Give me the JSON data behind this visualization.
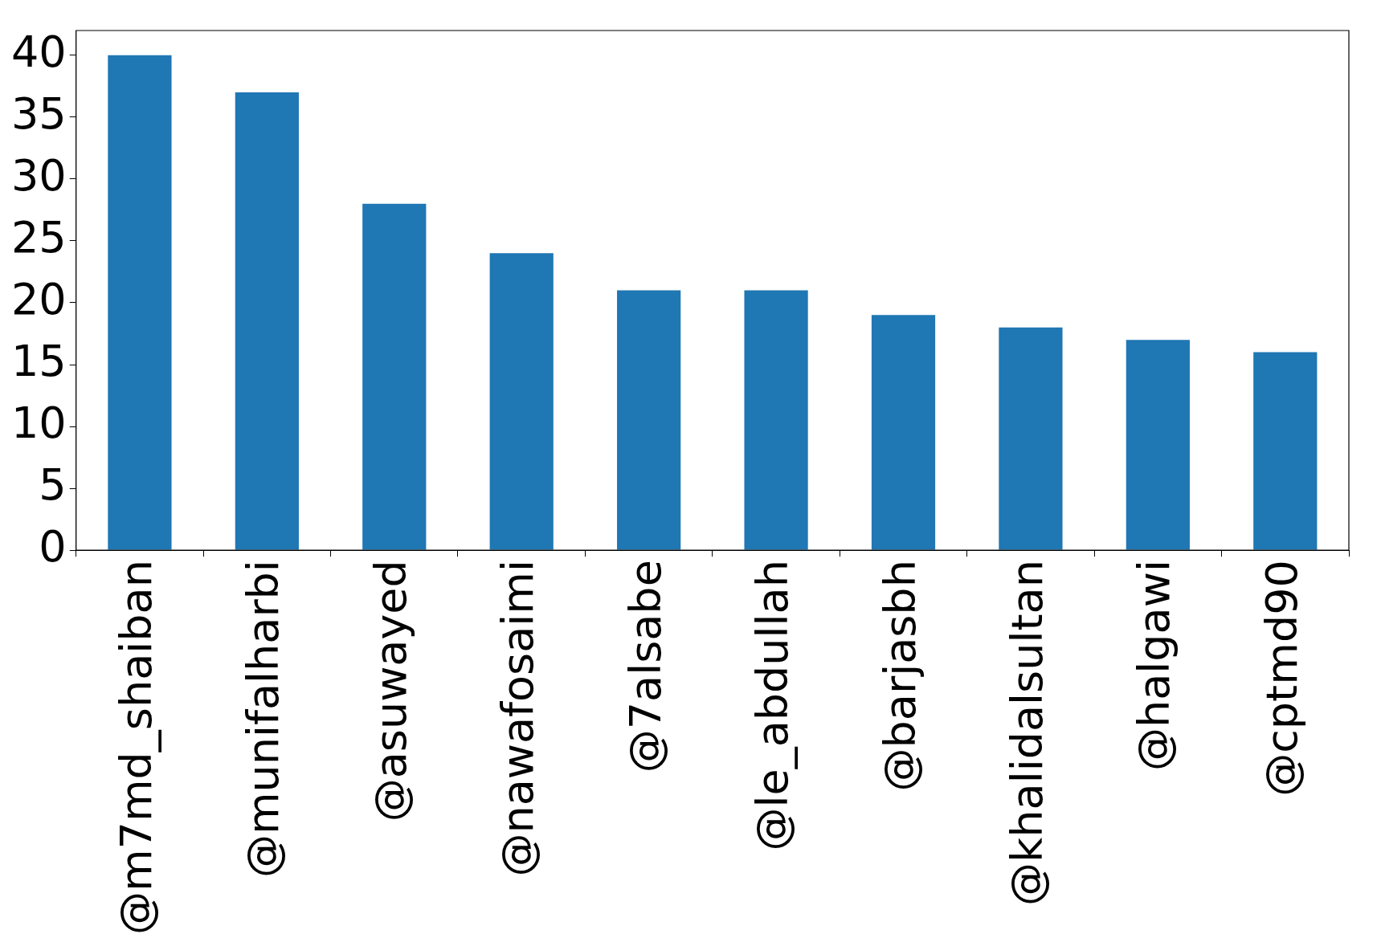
{
  "chart_data": {
    "type": "bar",
    "categories": [
      "@m7md_shaiban",
      "@munifalharbi",
      "@asuwayed",
      "@nawafosaimi",
      "@7alsabe",
      "@le_abdullah",
      "@barjasbh",
      "@khalidalsultan",
      "@halgawi",
      "@cptmd90"
    ],
    "values": [
      40,
      37,
      28,
      24,
      21,
      21,
      19,
      18,
      17,
      16
    ],
    "color": "#1f77b4",
    "ylim": [
      0,
      42
    ],
    "yticks": [
      0,
      5,
      10,
      15,
      20,
      25,
      30,
      35,
      40
    ],
    "grid": false,
    "legend": false
  }
}
